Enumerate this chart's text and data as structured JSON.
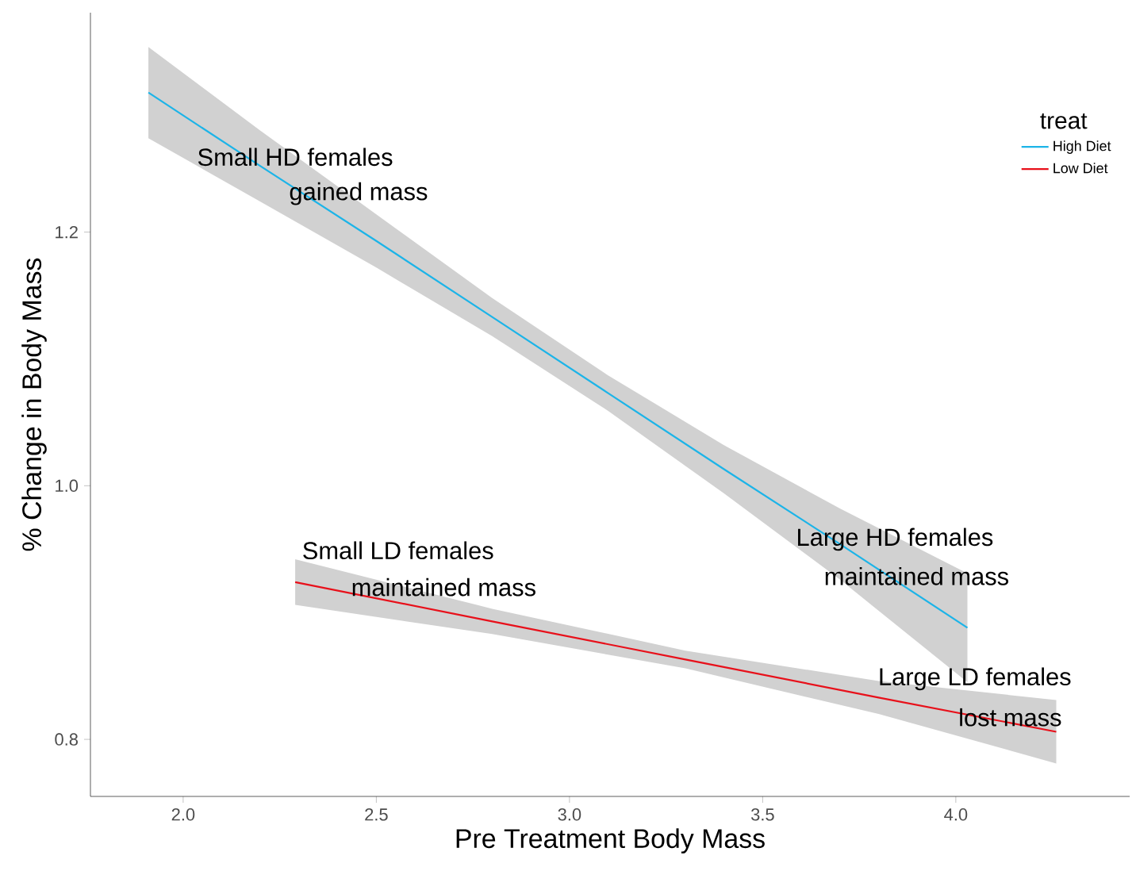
{
  "chart_data": {
    "type": "line",
    "xlabel": "Pre Treatment Body Mass",
    "ylabel": "% Change in Body Mass",
    "legend_title": "treat",
    "series": [
      {
        "name": "High Diet",
        "color": "#1cb4e8",
        "x": [
          1.91,
          2.2,
          2.5,
          2.8,
          3.1,
          3.4,
          3.7,
          4.03
        ],
        "values": [
          1.31,
          1.252,
          1.193,
          1.133,
          1.073,
          1.013,
          0.954,
          0.888
        ],
        "lower": [
          1.274,
          1.224,
          1.172,
          1.118,
          1.059,
          0.994,
          0.926,
          0.845
        ],
        "upper": [
          1.346,
          1.28,
          1.214,
          1.148,
          1.087,
          1.032,
          0.982,
          0.931
        ]
      },
      {
        "name": "Low Diet",
        "color": "#e8101a",
        "x": [
          2.29,
          2.8,
          3.3,
          3.8,
          4.26
        ],
        "values": [
          0.924,
          0.893,
          0.863,
          0.833,
          0.806
        ],
        "lower": [
          0.906,
          0.883,
          0.856,
          0.82,
          0.781
        ],
        "upper": [
          0.942,
          0.903,
          0.87,
          0.846,
          0.831
        ]
      }
    ],
    "xlim": [
      1.76,
      4.45
    ],
    "ylim": [
      0.755,
      1.373
    ],
    "xticks": [
      {
        "value": 2,
        "label": "2.0"
      },
      {
        "value": 2.5,
        "label": "2.5"
      },
      {
        "value": 3,
        "label": "3.0"
      },
      {
        "value": 3.5,
        "label": "3.5"
      },
      {
        "value": 4,
        "label": "4.0"
      }
    ],
    "yticks": [
      {
        "value": 0.8,
        "label": "0.8"
      },
      {
        "value": 1,
        "label": "1.0"
      },
      {
        "value": 1.2,
        "label": "1.2"
      }
    ],
    "grid": false,
    "legend": "top right",
    "marker": "none",
    "line_style": "solid",
    "annotations": [
      "Small HD females",
      "gained mass",
      "Large HD females",
      "maintained mass",
      "Small LD females",
      "maintained mass",
      "Large LD females",
      "lost mass"
    ]
  }
}
